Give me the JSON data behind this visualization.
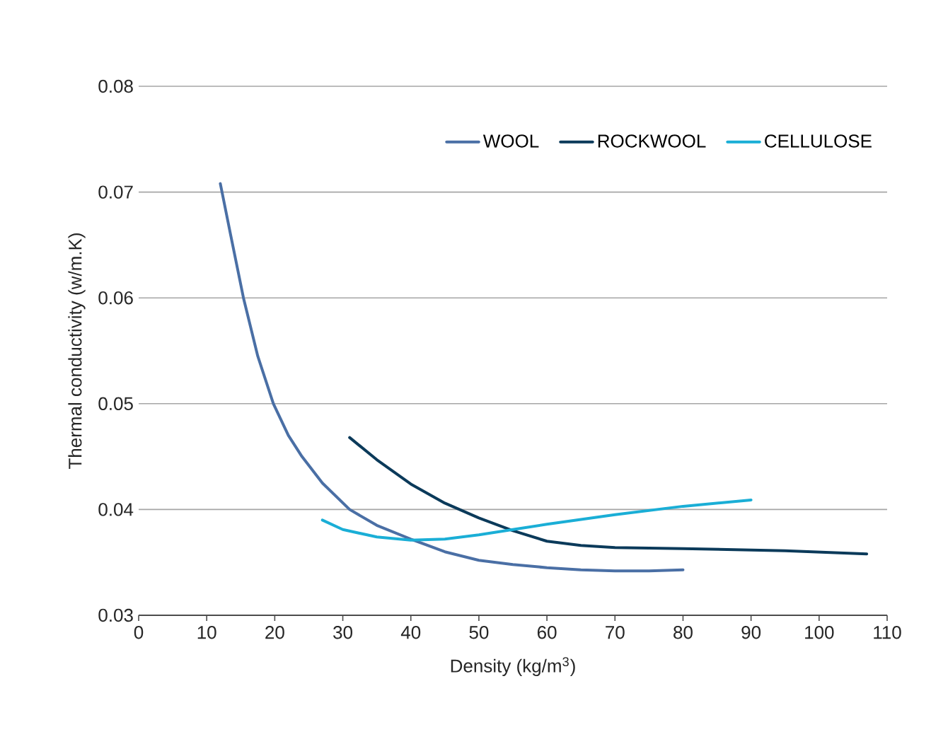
{
  "chart_data": {
    "type": "line",
    "xlabel": "Density (kg/m$^{3}$)",
    "ylabel": "Thermal conductivity (w/m.K)",
    "xlim": [
      0,
      110
    ],
    "xticks": [
      0,
      10,
      20,
      30,
      40,
      50,
      60,
      70,
      80,
      90,
      100,
      110
    ],
    "ylim": [
      0.03,
      0.08
    ],
    "yticks": [
      0.03,
      0.04,
      0.05,
      0.06,
      0.07,
      0.08
    ],
    "grid": "y",
    "legend": "top right",
    "line_style": "solid",
    "marker": "none",
    "series": [
      {
        "name": "WOOL",
        "color": "#4a6fa5",
        "x": [
          12,
          13.5,
          15.4,
          17.5,
          19.8,
          22,
          24,
          27,
          31,
          35,
          40,
          45,
          50,
          55,
          60,
          65,
          70,
          75,
          80
        ],
        "values": [
          0.0708,
          0.066,
          0.06,
          0.0545,
          0.05,
          0.047,
          0.045,
          0.0425,
          0.04,
          0.0385,
          0.0372,
          0.036,
          0.0352,
          0.0348,
          0.0345,
          0.0343,
          0.0342,
          0.0342,
          0.0343
        ]
      },
      {
        "name": "ROCKWOOL",
        "color": "#0b3a5a",
        "x": [
          31,
          35,
          40,
          45,
          50,
          55,
          60,
          65,
          70,
          80,
          95,
          107
        ],
        "values": [
          0.0468,
          0.0447,
          0.0424,
          0.0406,
          0.0392,
          0.038,
          0.037,
          0.0366,
          0.0364,
          0.0363,
          0.0361,
          0.0358
        ]
      },
      {
        "name": "CELLULOSE",
        "color": "#1aaed6",
        "x": [
          27,
          30,
          35,
          40,
          45,
          50,
          55,
          60,
          70,
          80,
          90
        ],
        "values": [
          0.039,
          0.0381,
          0.0374,
          0.0371,
          0.0372,
          0.0376,
          0.0381,
          0.0386,
          0.0395,
          0.0403,
          0.0409
        ]
      }
    ]
  }
}
